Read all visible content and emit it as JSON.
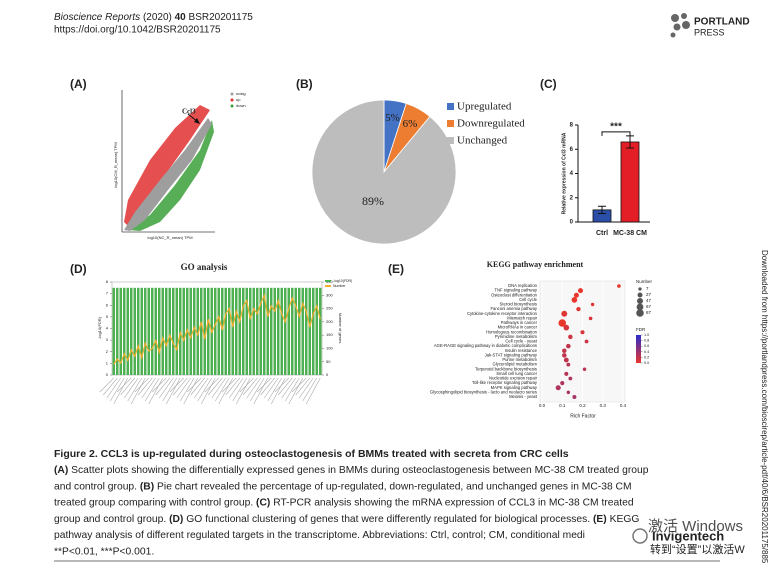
{
  "header": {
    "journal": "Bioscience Reports",
    "year": "(2020)",
    "volume": "40",
    "article": "BSR20201175",
    "doi": "https://doi.org/10.1042/BSR20201175",
    "logo_top": "PORTLAND",
    "logo_bottom": "PRESS"
  },
  "panels": {
    "a": {
      "label": "(A)",
      "ylabel": "log10(CM_R_mean) TPM",
      "xlabel": "log10(NC_R_mean) TPM",
      "legend": [
        {
          "name": "nosig",
          "color": "#9e9e9e"
        },
        {
          "name": "up",
          "color": "#e03030"
        },
        {
          "name": "down",
          "color": "#3aa03a"
        }
      ],
      "annotation": "Ccl3"
    },
    "b": {
      "label": "(B)",
      "type": "pie",
      "categories": [
        "Upregulated",
        "Downregulated",
        "Unchanged"
      ],
      "values": [
        5,
        6,
        89
      ],
      "value_labels": [
        "5%",
        "6%",
        "89%"
      ],
      "colors": [
        "#4472c4",
        "#ed7d31",
        "#bdbdbd"
      ]
    },
    "c": {
      "label": "(C)",
      "type": "bar",
      "ylabel": "Relative expression of Ccl3 mRNA",
      "categories": [
        "Ctrl",
        "MC-38 CM"
      ],
      "values": [
        1.0,
        6.6
      ],
      "errors": [
        0.3,
        0.5
      ],
      "colors": [
        "#2b4fa8",
        "#e41e26"
      ],
      "ylim": [
        0,
        8
      ],
      "yticks": [
        0,
        2,
        4,
        6,
        8
      ],
      "annotation": "***"
    },
    "d": {
      "label": "(D)",
      "type": "bar",
      "title": "GO analysis",
      "ylabel": "-log10(FDR)",
      "y2label": "Number of genes",
      "ylim": [
        0,
        8
      ],
      "yticks": [
        0,
        1,
        2,
        3,
        4,
        5,
        6,
        7,
        8
      ],
      "y2lim": [
        0,
        350
      ],
      "y2ticks": [
        0,
        50,
        100,
        150,
        200,
        250,
        300,
        350
      ],
      "series": [
        {
          "name": "-log10(FDR)",
          "color": "#4caf50",
          "values": [
            7.5,
            7.5,
            7.5,
            7.5,
            7.5,
            7.5,
            7.5,
            7.5,
            7.5,
            7.5,
            7.5,
            7.5,
            7.5,
            7.5,
            7.5,
            7.5,
            7.5,
            7.5,
            7.5,
            7.5,
            7.5,
            7.5,
            7.5,
            7.5,
            7.5,
            7.5,
            7.5,
            7.5,
            7.5,
            7.5,
            7.5,
            7.5,
            7.5,
            7.5,
            7.5,
            7.5,
            7.5,
            7.5,
            7.5,
            7.5,
            7.5,
            7.5,
            7.5,
            7.5,
            7.5,
            7.5,
            7.5,
            7.5,
            7.5,
            7.5,
            7.5,
            7.5,
            7.5,
            7.5,
            7.5,
            7.5,
            7.5,
            7.5,
            7.5,
            7.5
          ]
        },
        {
          "name": "Number",
          "color": "#f0b030",
          "axis": "y2",
          "values": [
            40,
            60,
            45,
            80,
            55,
            95,
            70,
            110,
            65,
            120,
            90,
            100,
            130,
            85,
            140,
            110,
            150,
            120,
            95,
            160,
            130,
            170,
            140,
            180,
            150,
            200,
            135,
            210,
            160,
            190,
            220,
            170,
            230,
            250,
            180,
            240,
            200,
            260,
            280,
            210,
            250,
            230,
            270,
            300,
            220,
            260,
            240,
            280,
            230,
            200,
            250,
            290,
            260,
            220,
            270,
            240,
            180,
            230,
            260,
            210
          ]
        }
      ]
    },
    "e": {
      "label": "(E)",
      "type": "scatter",
      "title": "KEGG pathway enrichment",
      "xlabel": "Rich Factor",
      "xlim": [
        -0.01,
        0.41
      ],
      "xticks": [
        {
          "value": 0,
          "label": "0.0"
        },
        0.1,
        0.2,
        0.3,
        0.4
      ],
      "categories": [
        "DNA replication",
        "TNF signaling pathway",
        "Osteoclast differentiation",
        "Cell cycle",
        "Steroid biosynthesis",
        "Fanconi anemia pathway",
        "Cytokine-cytokine receptor interaction",
        "Mismatch repair",
        "Pathways in cancer",
        "MicroRNAs in cancer",
        "Homologous recombination",
        "Pyrimidine metabolism",
        "Cell cycle - yeast",
        "AGE-RAGE signaling pathway in diabetic complications",
        "Insulin resistance",
        "Jak-STAT signaling pathway",
        "Purine metabolism",
        "Glycerolipid metabolism",
        "Terpenoid backbone biosynthesis",
        "Small cell lung cancer",
        "Nucleotide excision repair",
        "Toll-like receptor signaling pathway",
        "MAPK signaling pathway",
        "Glycosphingolipid biosynthesis - lacto and neolacto series",
        "Meiosis - yeast"
      ],
      "x": [
        0.38,
        0.19,
        0.17,
        0.16,
        0.25,
        0.18,
        0.11,
        0.24,
        0.1,
        0.12,
        0.2,
        0.14,
        0.22,
        0.13,
        0.11,
        0.11,
        0.12,
        0.13,
        0.21,
        0.12,
        0.14,
        0.1,
        0.08,
        0.13,
        0.16
      ],
      "sizes": [
        10,
        30,
        28,
        40,
        8,
        18,
        45,
        10,
        87,
        40,
        15,
        20,
        12,
        22,
        20,
        22,
        25,
        12,
        9,
        14,
        12,
        16,
        30,
        8,
        14
      ],
      "fdr": [
        0.0,
        0.0,
        0.0,
        0.0,
        0.05,
        0.05,
        0.05,
        0.1,
        0.0,
        0.1,
        0.1,
        0.15,
        0.15,
        0.2,
        0.2,
        0.2,
        0.2,
        0.25,
        0.25,
        0.25,
        0.3,
        0.3,
        0.3,
        0.35,
        0.35
      ],
      "size_title": "Number",
      "size_legend": [
        7,
        27,
        47,
        67,
        87
      ],
      "color_title": "FDR",
      "color_ticks": [
        {
          "value": 1,
          "label": "1.0"
        },
        0.8,
        0.6,
        0.4,
        0.2,
        {
          "value": 0,
          "label": "0.0"
        }
      ]
    }
  },
  "caption": {
    "title": "Figure 2. CCL3 is up-regulated during osteoclastogenesis of BMMs treated with secreta from CRC cells",
    "lines": [
      "(A) Scatter plots showing the differentially expressed genes in BMMs during osteoclastogenesis between MC-38 CM treated group",
      "and control group. (B) Pie chart revealed the percentage of up-regulated, down-regulated, and unchanged genes in MC-38 CM",
      "treated group comparing with control group. (C) RT-PCR analysis showing the mRNA expression of CCL3 in MC-38 CM treated",
      "group and control group. (D) GO functional clustering of genes that were differently regulated for biological processes. (E) KEGG",
      "pathway analysis of different regulated targets in the transcriptome. Abbreviations: Ctrl, control; CM, conditional medi",
      "**P<0.01, ***P<0.001."
    ]
  },
  "side": "Downloaded from https://portlandpress.com/bioscirep/article-pdf/40/6/BSR20201175/885",
  "watermark": {
    "brand": "Invigentech",
    "line1": "激活 Windows",
    "line2": "转到“设置”以激活W"
  }
}
